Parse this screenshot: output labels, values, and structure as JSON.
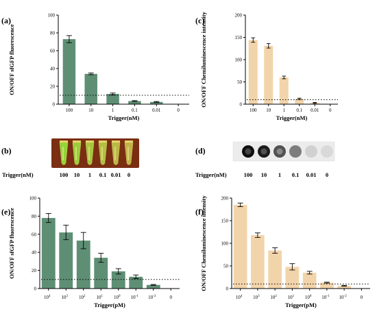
{
  "colors": {
    "green": "#5e8f75",
    "peach": "#f2d4ab",
    "tube_bg": "#7a2e12"
  },
  "chart_data": [
    {
      "id": "a",
      "type": "bar",
      "label": "(a)",
      "categories": [
        "100",
        "10",
        "1",
        "0.1",
        "0.01",
        "0"
      ],
      "values": [
        73,
        34,
        11.5,
        3.5,
        2.5,
        0
      ],
      "errors": [
        4,
        1,
        1,
        0.5,
        0.5,
        0
      ],
      "threshold": 10,
      "ylabel": "ON/OFF sfGFP fluorescence",
      "xlabel": "Trigger(nM)",
      "ylim": [
        0,
        100
      ],
      "yticks": [
        "0",
        "20",
        "40",
        "60",
        "80",
        "100"
      ],
      "color": "#5e8f75"
    },
    {
      "id": "c",
      "type": "bar",
      "label": "(c)",
      "categories": [
        "100",
        "10",
        "1",
        "0.1",
        "0.01",
        "0"
      ],
      "values": [
        144,
        131,
        60,
        12,
        3,
        0
      ],
      "errors": [
        5,
        5,
        3,
        1.5,
        1,
        0
      ],
      "threshold": 10,
      "ylabel": "ON/OFF Chemiluminescence intensity",
      "xlabel": "Trigger(nM)",
      "ylim": [
        0,
        200
      ],
      "yticks": [
        "0",
        "50",
        "100",
        "150",
        "200"
      ],
      "color": "#f2d4ab"
    },
    {
      "id": "e",
      "type": "bar",
      "label": "(e)",
      "categories": [
        "4",
        "3",
        "2",
        "1",
        "0",
        "-1",
        "-2",
        ""
      ],
      "categories_prefix": "10",
      "last_category": "0",
      "values": [
        78,
        62,
        53,
        34,
        19,
        13,
        4,
        0
      ],
      "errors": [
        5,
        8,
        9,
        5,
        3,
        2,
        0.5,
        0
      ],
      "threshold": 10,
      "ylabel": "ON/OFF sfGFP fluorescence",
      "xlabel": "Trigger(pM)",
      "ylim": [
        0,
        100
      ],
      "yticks": [
        "0",
        "20",
        "40",
        "60",
        "80",
        "100"
      ],
      "color": "#5e8f75"
    },
    {
      "id": "f",
      "type": "bar",
      "label": "(f)",
      "categories": [
        "4",
        "3",
        "2",
        "1",
        "0",
        "-1",
        "-2",
        ""
      ],
      "categories_prefix": "10",
      "last_category": "0",
      "values": [
        185,
        118,
        84,
        48,
        35,
        13,
        6,
        0
      ],
      "errors": [
        4,
        5,
        6,
        7,
        3,
        1,
        1,
        0
      ],
      "threshold": 10,
      "ylabel": "ON/OFF Chemiluminescence intensity",
      "xlabel": "Trigger(pM)",
      "ylim": [
        0,
        200
      ],
      "yticks": [
        "0",
        "50",
        "100",
        "150",
        "200"
      ],
      "color": "#f2d4ab"
    }
  ],
  "panel_b": {
    "label": "(b)",
    "axis_label": "Trigger(nM)",
    "values": [
      "100",
      "10",
      "1",
      "0.1",
      "0.01",
      "0"
    ]
  },
  "panel_d": {
    "label": "(d)",
    "axis_label": "Trigger(nM)",
    "values": [
      "100",
      "10",
      "1",
      "0.1",
      "0.01",
      "0"
    ],
    "spot_intensity": [
      1.0,
      0.95,
      0.7,
      0.5,
      0.12,
      0.08
    ]
  }
}
